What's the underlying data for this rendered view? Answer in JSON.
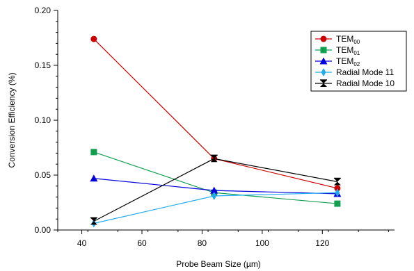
{
  "chart_data": {
    "type": "line",
    "title": "",
    "xlabel": "Probe Beam Size (µm)",
    "ylabel": "Conversion Efficiency (%)",
    "xlim": [
      32,
      144
    ],
    "ylim": [
      0,
      0.2
    ],
    "x_ticks": [
      40,
      60,
      80,
      100,
      120
    ],
    "y_ticks": [
      0.0,
      0.05,
      0.1,
      0.15,
      0.2
    ],
    "y_tick_labels": [
      "0.00",
      "0.05",
      "0.10",
      "0.15",
      "0.20"
    ],
    "grid": false,
    "legend_position": "top-right",
    "series": [
      {
        "name": "TEM",
        "sub": "00",
        "color": "#cc0000",
        "marker": "circle",
        "x": [
          44,
          84,
          125
        ],
        "y": [
          0.174,
          0.065,
          0.038
        ]
      },
      {
        "name": "TEM",
        "sub": "01",
        "color": "#12a050",
        "marker": "square",
        "x": [
          44,
          84,
          125
        ],
        "y": [
          0.071,
          0.034,
          0.024
        ]
      },
      {
        "name": "TEM",
        "sub": "02",
        "color": "#0000dd",
        "marker": "triangle-up",
        "x": [
          44,
          84,
          125
        ],
        "y": [
          0.047,
          0.036,
          0.033
        ]
      },
      {
        "name": "Radial Mode 11",
        "sub": "",
        "color": "#22aaee",
        "marker": "diamond",
        "x": [
          44,
          84,
          125
        ],
        "y": [
          0.006,
          0.031,
          0.034
        ]
      },
      {
        "name": "Radial Mode 10",
        "sub": "",
        "color": "#000000",
        "marker": "bowtie",
        "x": [
          44,
          84,
          125
        ],
        "y": [
          0.008,
          0.065,
          0.044
        ]
      }
    ]
  }
}
